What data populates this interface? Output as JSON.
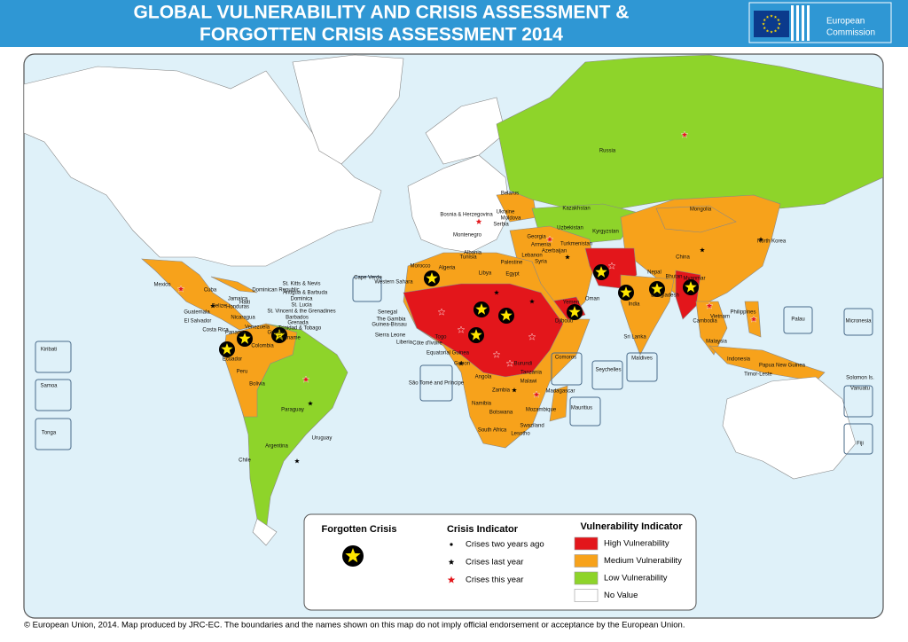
{
  "header": {
    "title_lines": [
      "GLOBAL VULNERABILITY AND CRISIS ASSESSMENT &",
      "FORGOTTEN CRISIS ASSESSMENT 2014"
    ],
    "logo_lines": [
      "European",
      "Commission"
    ]
  },
  "legend": {
    "forgotten_title": "Forgotten Crisis",
    "crisis_title": "Crisis Indicator",
    "crisis_items": [
      {
        "label": "Crises two years ago",
        "color": "#000000"
      },
      {
        "label": "Crises last year",
        "color": "#000000"
      },
      {
        "label": "Crises this year",
        "color": "#e3161b"
      }
    ],
    "vulnerability_title": "Vulnerability Indicator",
    "vulnerability_items": [
      {
        "label": "High Vulnerability",
        "color": "#e3161b"
      },
      {
        "label": "Medium Vulnerability",
        "color": "#f7a21b"
      },
      {
        "label": "Low Vulnerability",
        "color": "#8ed42a"
      },
      {
        "label": "No Value",
        "color": "#ffffff"
      }
    ]
  },
  "labels": [
    "Russia",
    "Kazakhstan",
    "Mongolia",
    "China",
    "North Korea",
    "India",
    "Nepal",
    "Bhutan",
    "Bangladesh",
    "Myanmar",
    "Philippines",
    "Vietnam",
    "Cambodia",
    "Malaysia",
    "Indonesia",
    "Papua New Guinea",
    "Timor-Leste",
    "Sri Lanka",
    "Maldives",
    "Seychelles",
    "Comoros",
    "Mauritius",
    "Madagascar",
    "Mozambique",
    "Zambia",
    "Malawi",
    "Namibia",
    "Botswana",
    "South Africa",
    "Lesotho",
    "Swaziland",
    "Angola",
    "Gabon",
    "Burundi",
    "Tanzania",
    "Morocco",
    "Algeria",
    "Libya",
    "Egypt",
    "Tunisia",
    "Western Sahara",
    "Cape Verde",
    "Senegal",
    "The Gambia",
    "Guinea-Bissau",
    "Sierra Leone",
    "Liberia",
    "Côte d'Ivoire",
    "Togo",
    "Equatorial Guinea",
    "São Tomé and Príncipe",
    "Ukraine",
    "Belarus",
    "Moldova",
    "Serbia",
    "Bosnia & Herzegovina",
    "Montenegro",
    "Albania",
    "Georgia",
    "Armenia",
    "Azerbaijan",
    "Uzbekistan",
    "Kyrgyzstan",
    "Turkmenistan",
    "Syria",
    "Lebanon",
    "Palestine",
    "Yemen",
    "Oman",
    "Djibouti",
    "Mexico",
    "Cuba",
    "Dominican Republic",
    "Haiti",
    "Jamaica",
    "Belize",
    "Guatemala",
    "El Salvador",
    "Honduras",
    "Nicaragua",
    "Costa Rica",
    "Panama",
    "Venezuela",
    "Guyana",
    "Suriname",
    "Colombia",
    "Ecuador",
    "Peru",
    "Bolivia",
    "Paraguay",
    "Uruguay",
    "Argentina",
    "Chile",
    "St. Kitts & Nevis",
    "Antigua & Barbuda",
    "Dominica",
    "St. Lucia",
    "St. Vincent & the Grenadines",
    "Barbados",
    "Grenada",
    "Trinidad & Tobago",
    "Kiribati",
    "Samoa",
    "Tonga",
    "Palau",
    "Micronesia",
    "Vanuatu",
    "Solomon Is.",
    "Fiji"
  ],
  "footer": "© European Union, 2014. Map produced by JRC-EC. The boundaries and the names shown on this map do not imply official endorsement or acceptance by the European Union."
}
